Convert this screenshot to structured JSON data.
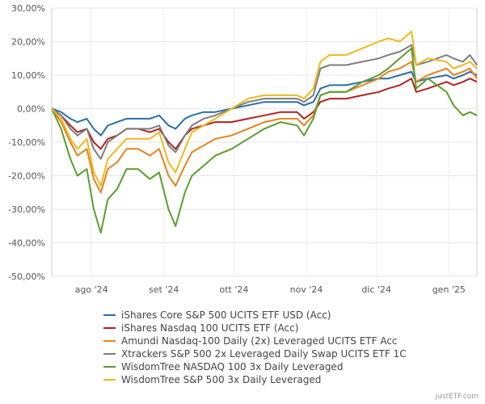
{
  "chart_data": {
    "type": "line",
    "title": "",
    "xlabel": "",
    "ylabel": "",
    "ylim": [
      -50,
      30
    ],
    "y_ticks": [
      30,
      20,
      10,
      0,
      -10,
      -20,
      -30,
      -40,
      -50
    ],
    "y_tick_labels": [
      "30,00%",
      "20,00%",
      "10,00%",
      "0,00%",
      "-10,00%",
      "-20,00%",
      "-30,00%",
      "-40,00%",
      "-50,00%"
    ],
    "x_range": [
      "2024-07-15",
      "2025-01-13"
    ],
    "x_ticks": [
      {
        "date": "2024-08-01",
        "label": "ago '24"
      },
      {
        "date": "2024-09-01",
        "label": "set '24"
      },
      {
        "date": "2024-10-01",
        "label": "ott '24"
      },
      {
        "date": "2024-11-01",
        "label": "nov '24"
      },
      {
        "date": "2024-12-01",
        "label": "dic '24"
      },
      {
        "date": "2025-01-01",
        "label": "gen '25"
      }
    ],
    "grid": true,
    "legend_position": "bottom",
    "x": [
      "2024-07-15",
      "2024-07-19",
      "2024-07-23",
      "2024-07-26",
      "2024-07-30",
      "2024-08-02",
      "2024-08-05",
      "2024-08-08",
      "2024-08-12",
      "2024-08-16",
      "2024-08-21",
      "2024-08-26",
      "2024-08-30",
      "2024-09-03",
      "2024-09-06",
      "2024-09-10",
      "2024-09-13",
      "2024-09-18",
      "2024-09-23",
      "2024-09-30",
      "2024-10-07",
      "2024-10-14",
      "2024-10-21",
      "2024-10-28",
      "2024-10-31",
      "2024-11-04",
      "2024-11-07",
      "2024-11-11",
      "2024-11-18",
      "2024-11-25",
      "2024-12-02",
      "2024-12-06",
      "2024-12-11",
      "2024-12-16",
      "2024-12-18",
      "2024-12-23",
      "2024-12-31",
      "2025-01-03",
      "2025-01-07",
      "2025-01-10",
      "2025-01-13"
    ],
    "series": [
      {
        "name": "iShares Core S&P 500 UCITS ETF USD (Acc)",
        "color": "#2a6ea8",
        "values": [
          0,
          -1,
          -3,
          -4,
          -3,
          -6,
          -8,
          -5,
          -4,
          -3,
          -3,
          -3,
          -2,
          -5,
          -6,
          -3,
          -2,
          -1,
          -1,
          0,
          1,
          2,
          2,
          2,
          1,
          2,
          6,
          7,
          7,
          8,
          9,
          9,
          10,
          11,
          8,
          9,
          10,
          9,
          10,
          11,
          10
        ]
      },
      {
        "name": "iShares Nasdaq 100 UCITS ETF (Acc)",
        "color": "#b0241f",
        "values": [
          0,
          -2,
          -5,
          -7,
          -6,
          -10,
          -12,
          -9,
          -8,
          -6,
          -6,
          -7,
          -6,
          -10,
          -12,
          -8,
          -6,
          -5,
          -4,
          -4,
          -3,
          -2,
          -1,
          -1,
          -3,
          -1,
          2,
          3,
          3,
          4,
          5,
          6,
          7,
          9,
          5,
          6,
          8,
          7,
          8,
          9,
          8
        ]
      },
      {
        "name": "Amundi Nasdaq-100 Daily (2x) Leveraged UCITS ETF Acc",
        "color": "#e8821e",
        "values": [
          0,
          -4,
          -10,
          -14,
          -12,
          -21,
          -25,
          -18,
          -16,
          -12,
          -12,
          -14,
          -12,
          -20,
          -23,
          -17,
          -13,
          -11,
          -9,
          -8,
          -6,
          -4,
          -3,
          -3,
          -5,
          -2,
          4,
          5,
          5,
          7,
          9,
          11,
          12,
          14,
          8,
          10,
          12,
          10,
          11,
          12,
          9
        ]
      },
      {
        "name": "Xtrackers S&P 500 2x Leveraged Daily Swap UCITS ETF 1C",
        "color": "#7e7e7e",
        "values": [
          0,
          -2,
          -6,
          -8,
          -6,
          -12,
          -15,
          -10,
          -8,
          -6,
          -6,
          -6,
          -5,
          -11,
          -13,
          -8,
          -5,
          -3,
          -2,
          0,
          2,
          3,
          3,
          3,
          2,
          4,
          12,
          13,
          13,
          14,
          15,
          16,
          17,
          19,
          13,
          14,
          16,
          15,
          14,
          16,
          13
        ]
      },
      {
        "name": "WisdomTree NASDAQ 100 3x Daily Leveraged",
        "color": "#5a9e2e",
        "values": [
          0,
          -6,
          -15,
          -20,
          -18,
          -30,
          -37,
          -27,
          -24,
          -18,
          -18,
          -21,
          -19,
          -30,
          -35,
          -25,
          -20,
          -17,
          -14,
          -12,
          -9,
          -6,
          -4,
          -5,
          -8,
          -3,
          4,
          5,
          5,
          8,
          10,
          12,
          15,
          18,
          6,
          9,
          5,
          1,
          -2,
          -1,
          -2
        ]
      },
      {
        "name": "WisdomTree S&P 500 3x Daily Leveraged",
        "color": "#f0b81c",
        "values": [
          0,
          -3,
          -9,
          -12,
          -9,
          -19,
          -23,
          -15,
          -12,
          -9,
          -9,
          -9,
          -7,
          -16,
          -19,
          -12,
          -7,
          -5,
          -3,
          0,
          3,
          4,
          4,
          4,
          3,
          6,
          14,
          16,
          16,
          18,
          20,
          21,
          20,
          23,
          13,
          15,
          14,
          12,
          13,
          14,
          12
        ]
      }
    ]
  },
  "watermark": "justETF.com"
}
